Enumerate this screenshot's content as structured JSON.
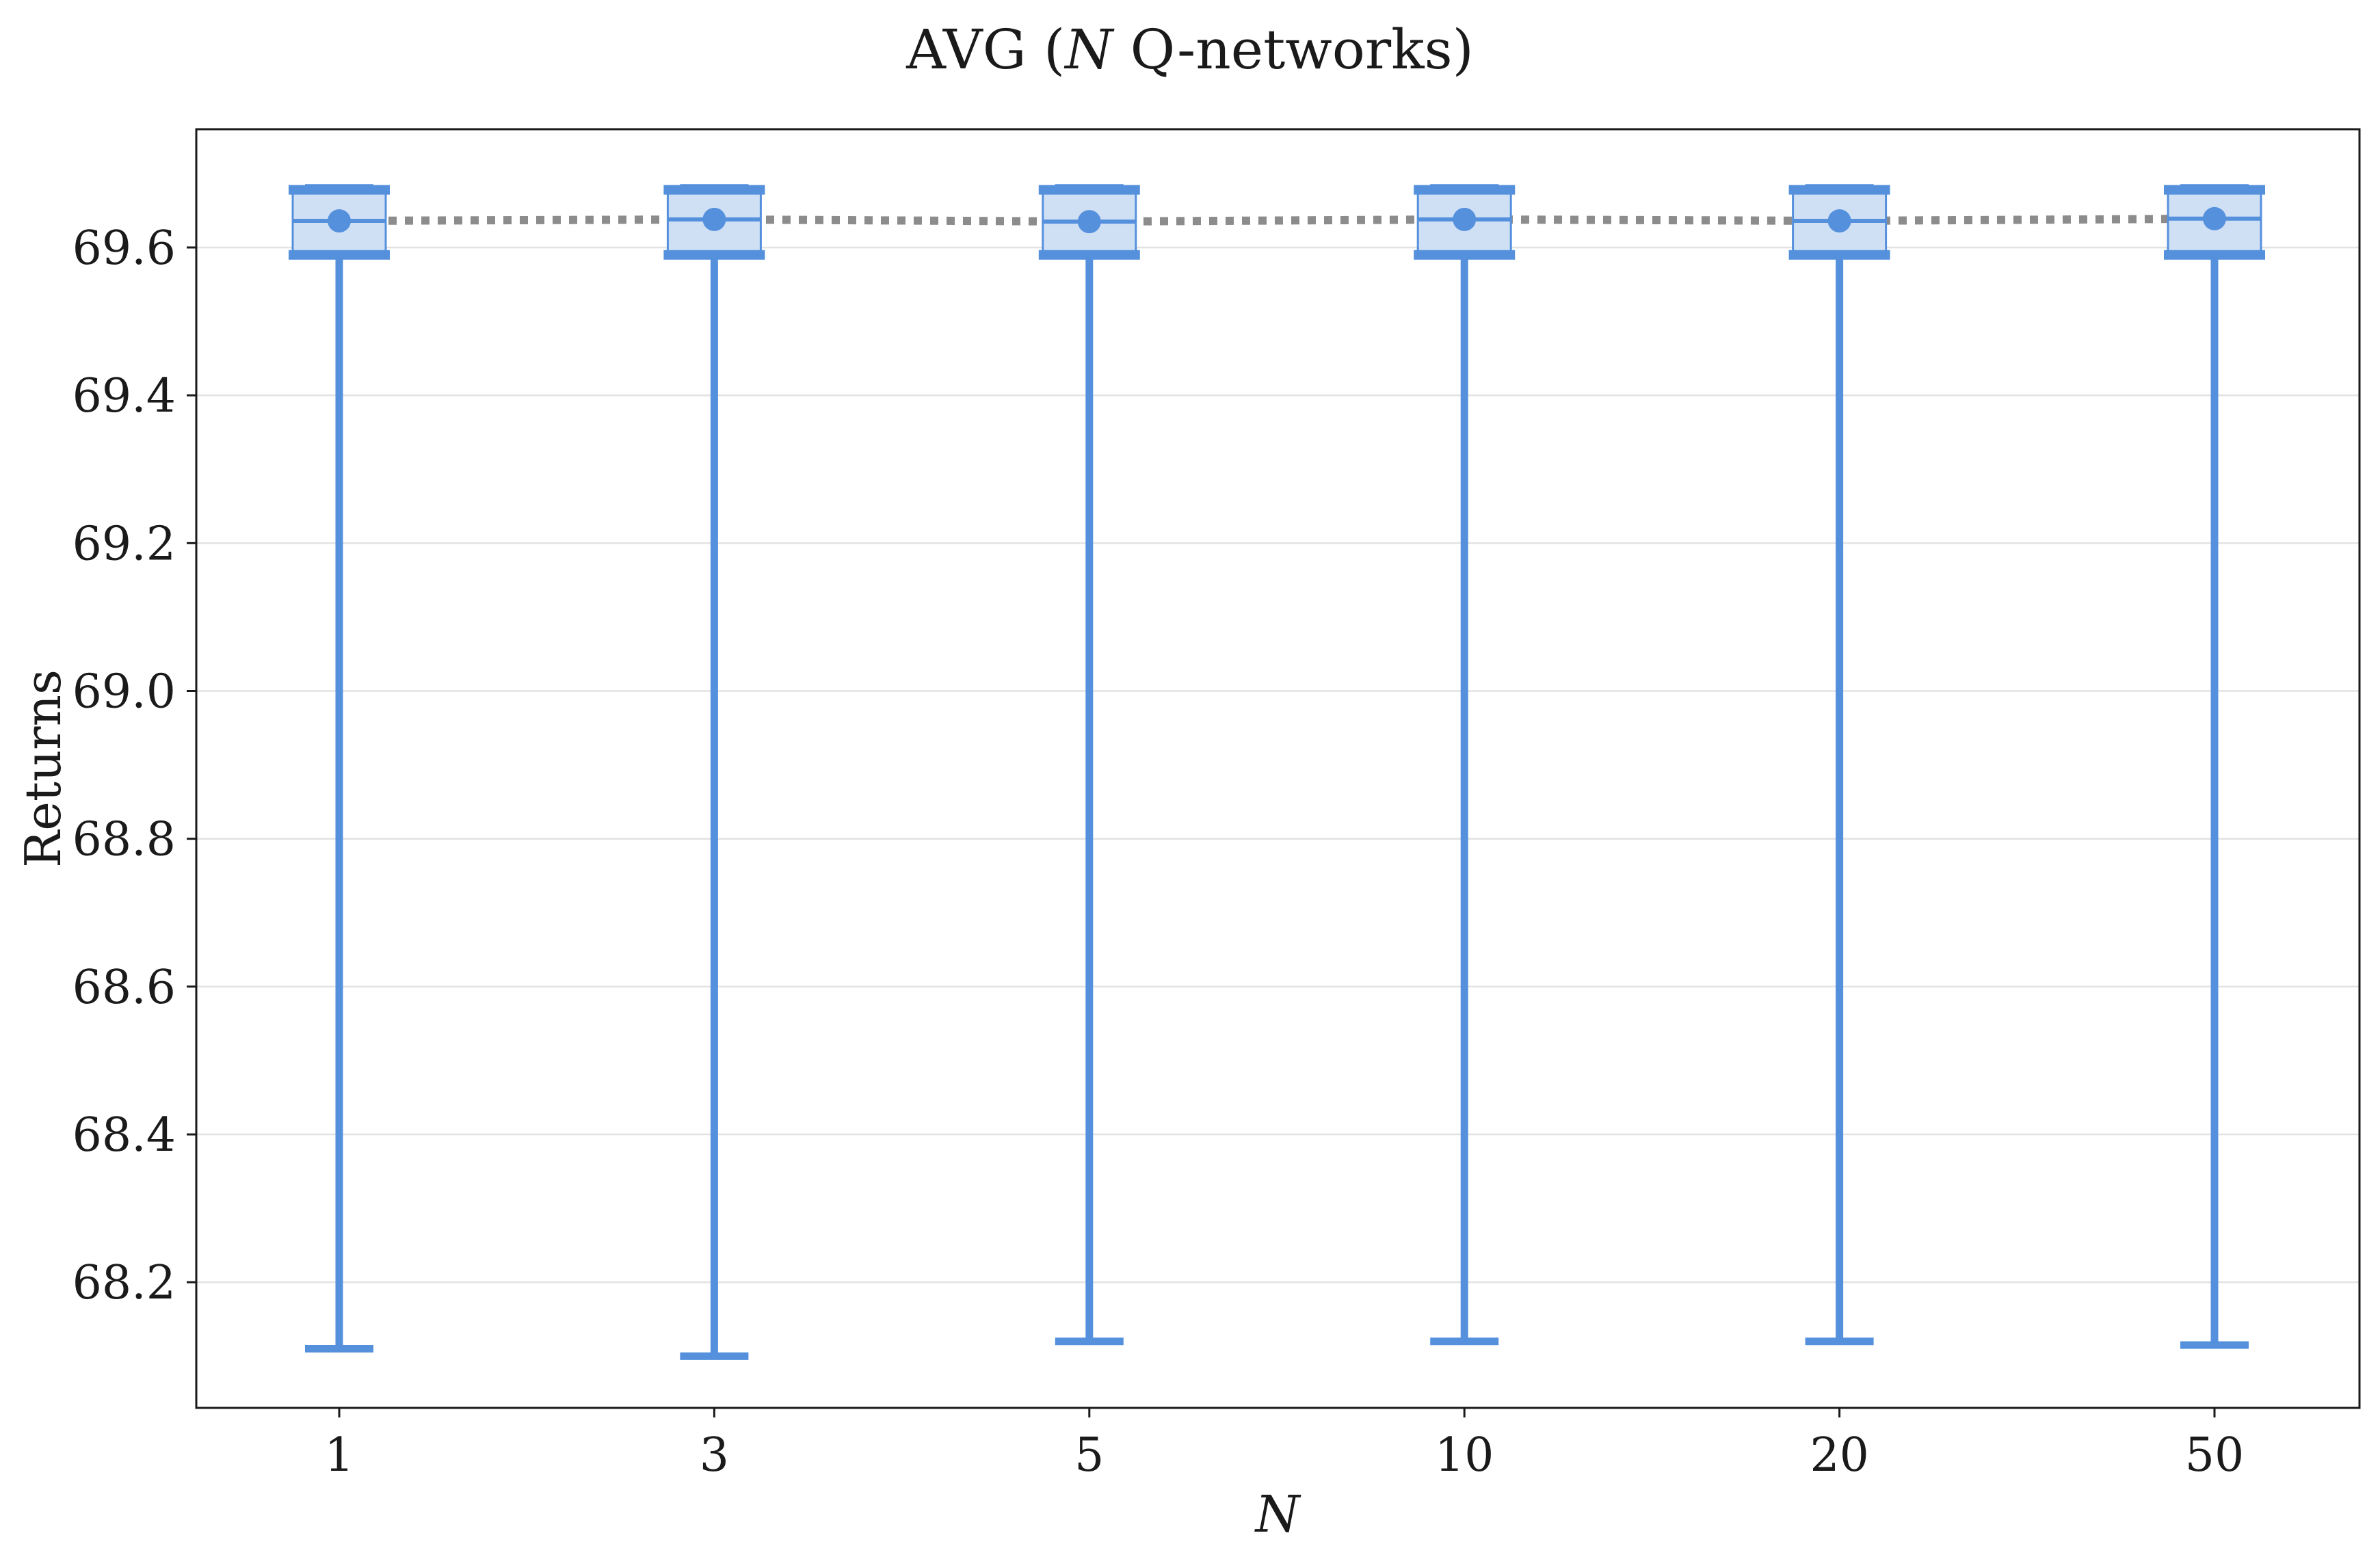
{
  "colors": {
    "accent": "#5590dd",
    "box_fill": "#cfe0f5",
    "mean_line": "#8c8c8c",
    "grid": "#e2e2e2",
    "axis": "#1a1a1a"
  },
  "chart_data": {
    "type": "box",
    "title_main": "AVG (",
    "title_italic": "N",
    "title_rest": " Q-networks)",
    "xlabel": "N",
    "ylabel": "Returns",
    "categories": [
      "1",
      "3",
      "5",
      "10",
      "20",
      "50"
    ],
    "ylim": [
      68.03,
      69.76
    ],
    "yticks": [
      68.2,
      68.4,
      68.6,
      68.8,
      69.0,
      69.2,
      69.4,
      69.6
    ],
    "ytick_labels": [
      "68.2",
      "68.4",
      "68.6",
      "68.8",
      "69.0",
      "69.2",
      "69.4",
      "69.6"
    ],
    "grid": "horizontal",
    "series": [
      {
        "boxes": [
          {
            "min": 68.11,
            "q1": 69.59,
            "median": 69.636,
            "mean": 69.636,
            "q3": 69.678,
            "max": 69.682
          },
          {
            "min": 68.1,
            "q1": 69.59,
            "median": 69.638,
            "mean": 69.638,
            "q3": 69.678,
            "max": 69.682
          },
          {
            "min": 68.12,
            "q1": 69.59,
            "median": 69.635,
            "mean": 69.635,
            "q3": 69.678,
            "max": 69.682
          },
          {
            "min": 68.12,
            "q1": 69.59,
            "median": 69.638,
            "mean": 69.638,
            "q3": 69.678,
            "max": 69.682
          },
          {
            "min": 68.12,
            "q1": 69.59,
            "median": 69.636,
            "mean": 69.636,
            "q3": 69.678,
            "max": 69.682
          },
          {
            "min": 68.115,
            "q1": 69.59,
            "median": 69.639,
            "mean": 69.639,
            "q3": 69.678,
            "max": 69.682
          }
        ]
      }
    ]
  }
}
